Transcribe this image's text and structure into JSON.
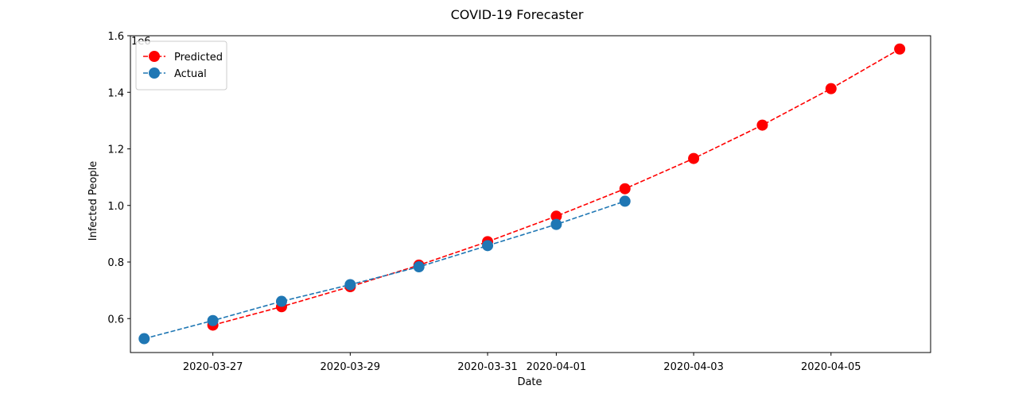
{
  "chart_data": {
    "type": "line",
    "title": "COVID-19 Forecaster",
    "xlabel": "Date",
    "ylabel": "Infected People",
    "y_offset_label": "1e6",
    "grid": false,
    "legend_position": "top-left",
    "xlim": [
      "2020-03-25T19:12",
      "2020-04-06T10:48"
    ],
    "ylim": [
      0.48,
      1.6
    ],
    "y_ticks": [
      0.6,
      0.8,
      1.0,
      1.2,
      1.4,
      1.6
    ],
    "y_tick_labels": [
      "0.6",
      "0.8",
      "1.0",
      "1.2",
      "1.4",
      "1.6"
    ],
    "x_ticks": [
      "2020-03-27",
      "2020-03-29",
      "2020-03-31",
      "2020-04-01",
      "2020-04-03",
      "2020-04-05"
    ],
    "x_tick_labels": [
      "2020-03-27",
      "2020-03-29",
      "2020-03-31",
      "2020-04-01",
      "2020-04-03",
      "2020-04-05"
    ],
    "series": [
      {
        "name": "Predicted",
        "color": "#ff0000",
        "linestyle": "dashed",
        "marker": "circle",
        "x": [
          "2020-03-27",
          "2020-03-28",
          "2020-03-29",
          "2020-03-30",
          "2020-03-31",
          "2020-04-01",
          "2020-04-02",
          "2020-04-03",
          "2020-04-04",
          "2020-04-05",
          "2020-04-06"
        ],
        "values": [
          0.577,
          0.642,
          0.713,
          0.789,
          0.872,
          0.962,
          1.059,
          1.166,
          1.284,
          1.413,
          1.553
        ]
      },
      {
        "name": "Actual",
        "color": "#1f77b4",
        "linestyle": "dashed",
        "marker": "circle",
        "x": [
          "2020-03-26",
          "2020-03-27",
          "2020-03-28",
          "2020-03-29",
          "2020-03-30",
          "2020-03-31",
          "2020-04-01",
          "2020-04-02"
        ],
        "values": [
          0.529,
          0.593,
          0.661,
          0.72,
          0.783,
          0.858,
          0.933,
          1.015
        ]
      }
    ]
  }
}
